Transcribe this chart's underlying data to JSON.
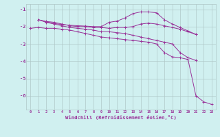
{
  "x": [
    0,
    1,
    2,
    3,
    4,
    5,
    6,
    7,
    8,
    9,
    10,
    11,
    12,
    13,
    14,
    15,
    16,
    17,
    18,
    19,
    20,
    21,
    22,
    23
  ],
  "line1": [
    null,
    -1.6,
    -1.7,
    -1.75,
    -1.85,
    -1.95,
    -2.0,
    -2.0,
    -2.05,
    -2.05,
    -2.1,
    -2.05,
    -2.05,
    -2.0,
    -1.85,
    -1.8,
    -1.85,
    -1.95,
    -2.05,
    -2.15,
    -2.3,
    -2.45,
    null,
    null
  ],
  "line2": [
    null,
    -1.6,
    -1.72,
    -1.82,
    -1.88,
    -1.92,
    -1.95,
    -1.97,
    -2.0,
    -2.0,
    -1.75,
    -1.68,
    -1.5,
    -1.25,
    -1.15,
    -1.15,
    -1.2,
    -1.6,
    -1.85,
    -2.05,
    -2.25,
    -2.45,
    null,
    null
  ],
  "line3": [
    null,
    -1.6,
    -1.75,
    -1.85,
    -1.95,
    -2.05,
    -2.1,
    -2.15,
    -2.2,
    -2.3,
    -2.3,
    -2.35,
    -2.4,
    -2.5,
    -2.6,
    -2.7,
    -2.8,
    -2.9,
    -3.0,
    -3.5,
    -3.8,
    -3.95,
    null,
    null
  ],
  "line4": [
    -2.1,
    -2.05,
    -2.1,
    -2.1,
    -2.15,
    -2.2,
    -2.3,
    -2.4,
    -2.5,
    -2.6,
    -2.65,
    -2.7,
    -2.75,
    -2.8,
    -2.85,
    -2.9,
    -3.0,
    -3.5,
    -3.75,
    -3.8,
    -3.9,
    -6.0,
    -6.35,
    -6.5
  ],
  "color": "#993399",
  "bg_color": "#d0f0f0",
  "grid_color": "#b0c8c8",
  "xlabel": "Windchill (Refroidissement éolien,°C)",
  "ylim": [
    -6.8,
    -0.7
  ],
  "xlim": [
    -0.5,
    23.5
  ],
  "yticks": [
    -1,
    -2,
    -3,
    -4,
    -5,
    -6
  ],
  "xticks": [
    0,
    1,
    2,
    3,
    4,
    5,
    6,
    7,
    8,
    9,
    10,
    11,
    12,
    13,
    14,
    15,
    16,
    17,
    18,
    19,
    20,
    21,
    22,
    23
  ],
  "figsize": [
    3.2,
    2.0
  ],
  "dpi": 100
}
